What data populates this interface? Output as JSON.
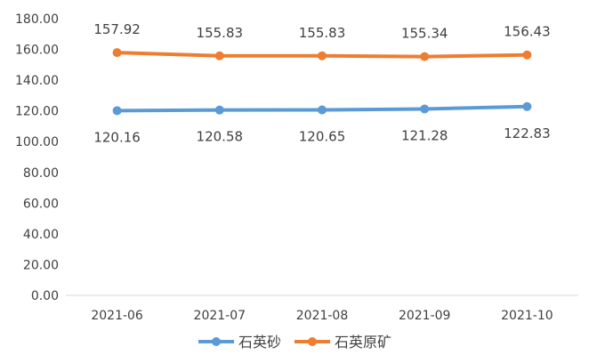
{
  "chart_data": {
    "type": "line",
    "title": "",
    "xlabel": "",
    "ylabel": "",
    "categories": [
      "2021-06",
      "2021-07",
      "2021-08",
      "2021-09",
      "2021-10"
    ],
    "ylim": [
      0,
      180
    ],
    "yticks": [
      "0.00",
      "20.00",
      "40.00",
      "60.00",
      "80.00",
      "100.00",
      "120.00",
      "140.00",
      "160.00",
      "180.00"
    ],
    "grid": false,
    "legend_position": "bottom",
    "series": [
      {
        "name": "石英砂",
        "color": "#5b9bd5",
        "values": [
          120.16,
          120.58,
          120.65,
          121.28,
          122.83
        ],
        "labels": [
          "120.16",
          "120.58",
          "120.65",
          "121.28",
          "122.83"
        ],
        "label_position": "below"
      },
      {
        "name": "石英原矿",
        "color": "#ed7d31",
        "values": [
          157.92,
          155.83,
          155.83,
          155.34,
          156.43
        ],
        "labels": [
          "157.92",
          "155.83",
          "155.83",
          "155.34",
          "156.43"
        ],
        "label_position": "above"
      }
    ]
  }
}
